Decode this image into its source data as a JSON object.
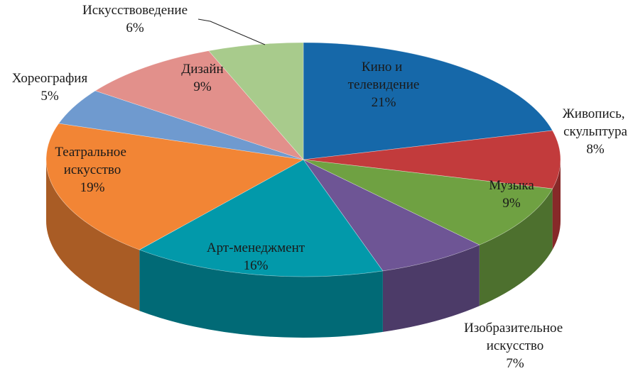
{
  "chart_data": {
    "type": "pie3d",
    "categories": [
      "Кино и телевидение",
      "Живопись, скульптура",
      "Музыка",
      "Изобразительное искусство",
      "Арт-менеджмент",
      "Театральное искусство",
      "Хореография",
      "Дизайн",
      "Искусствоведение"
    ],
    "values": [
      21,
      8,
      9,
      7,
      16,
      19,
      5,
      9,
      6
    ],
    "value_labels": [
      "21%",
      "8%",
      "9%",
      "7%",
      "16%",
      "19%",
      "5%",
      "9%",
      "6%"
    ],
    "colors": [
      "#1668a9",
      "#c23b3c",
      "#6fa142",
      "#6e5595",
      "#0299aa",
      "#f28535",
      "#6f9acf",
      "#e2908b",
      "#a8cb8c"
    ]
  }
}
